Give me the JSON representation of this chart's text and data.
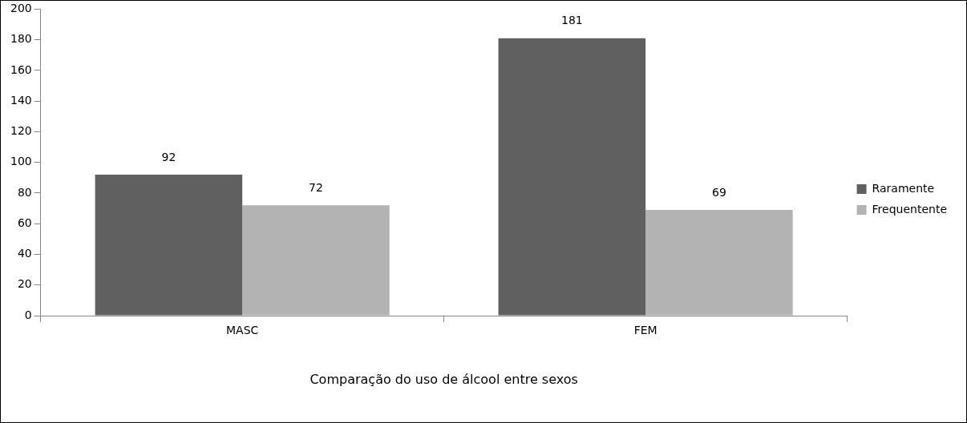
{
  "chart_data": {
    "type": "bar",
    "xlabel": "Comparação do uso de álcool entre sexos",
    "categories": [
      "MASC",
      "FEM"
    ],
    "series": [
      {
        "name": "Raramente",
        "color": "#606060",
        "values": [
          92,
          181
        ]
      },
      {
        "name": "Frequentente",
        "color": "#b3b3b3",
        "values": [
          72,
          69
        ]
      }
    ],
    "ylim": [
      0,
      200
    ],
    "yticks": [
      0,
      20,
      40,
      60,
      80,
      100,
      120,
      140,
      160,
      180,
      200
    ],
    "grid": false,
    "legend": "right",
    "data_labels": true
  }
}
